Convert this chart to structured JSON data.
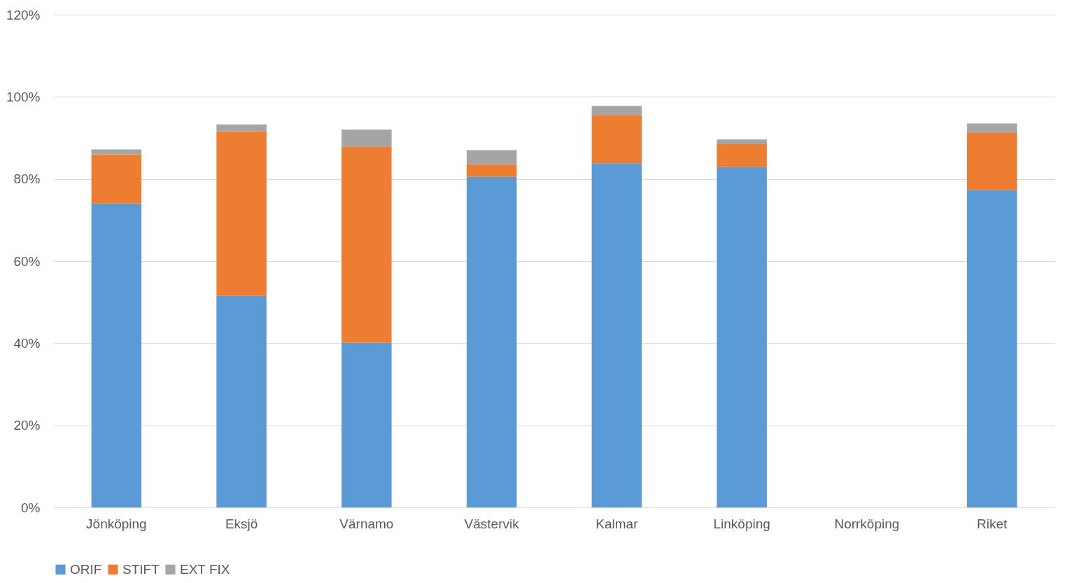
{
  "chart_data": {
    "type": "bar",
    "stacked": true,
    "categories": [
      "Jönköping",
      "Eksjö",
      "Värnamo",
      "Västervik",
      "Kalmar",
      "Linköping",
      "Norrköping",
      "Riket"
    ],
    "series": [
      {
        "name": "ORIF",
        "color": "#5b9bd5",
        "values": [
          74,
          51.5,
          40.1,
          80.5,
          83.8,
          82.9,
          null,
          77.3
        ]
      },
      {
        "name": "STIFT",
        "color": "#ed7d31",
        "values": [
          12,
          40.1,
          47.8,
          3.1,
          11.8,
          5.7,
          null,
          14
        ]
      },
      {
        "name": "EXT FIX",
        "color": "#a5a5a5",
        "values": [
          1.2,
          1.7,
          4.1,
          3.4,
          2.2,
          1,
          null,
          2.2
        ]
      }
    ],
    "ylim": [
      0,
      120
    ],
    "yticks": [
      {
        "value": 0,
        "label": "0%"
      },
      {
        "value": 20,
        "label": "20%"
      },
      {
        "value": 40,
        "label": "40%"
      },
      {
        "value": 60,
        "label": "60%"
      },
      {
        "value": 80,
        "label": "80%"
      },
      {
        "value": 100,
        "label": "100%"
      },
      {
        "value": 120,
        "label": "120%"
      }
    ],
    "grid": "y",
    "legend": "bottom"
  }
}
